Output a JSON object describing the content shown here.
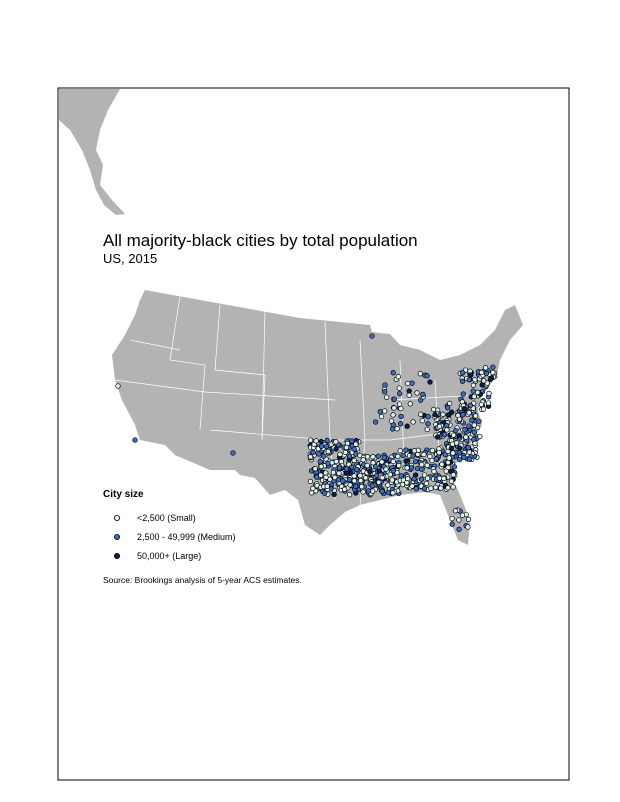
{
  "title": "All majority-black cities by total population",
  "subtitle": "US, 2015",
  "legend": {
    "title": "City size",
    "items": [
      {
        "label": "<2,500 (Small)",
        "color": "#dff3ef"
      },
      {
        "label": "2,500 - 49,999 (Medium)",
        "color": "#3d6fc6"
      },
      {
        "label": "50,000+ (Large)",
        "color": "#0b1f4f"
      }
    ]
  },
  "source": "Source: Brookings analysis of 5-year ACS estimates."
}
